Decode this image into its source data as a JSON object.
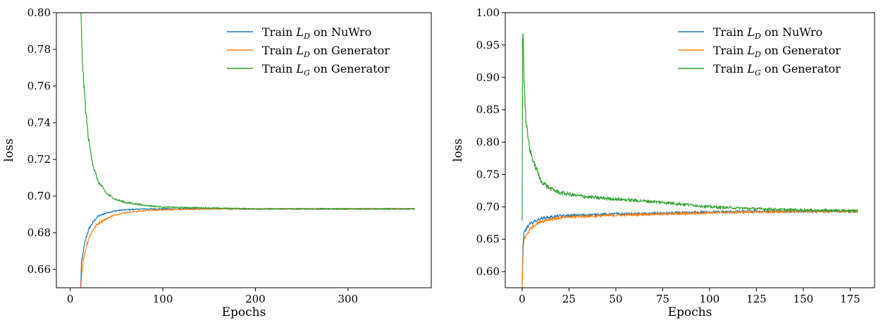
{
  "colors": {
    "nuwro_d": "#1f77b4",
    "gen_d": "#ff7f0e",
    "gen_g": "#2ca02c"
  },
  "chart_data": [
    {
      "type": "line",
      "xlabel": "Epochs",
      "ylabel": "loss",
      "xlim": [
        -15,
        390
      ],
      "ylim": [
        0.65,
        0.8
      ],
      "xticks": [
        0,
        100,
        200,
        300
      ],
      "yticks": [
        0.66,
        0.68,
        0.7,
        0.72,
        0.74,
        0.76,
        0.78,
        0.8
      ],
      "ytick_labels": [
        "0.66",
        "0.68",
        "0.70",
        "0.72",
        "0.74",
        "0.76",
        "0.78",
        "0.80"
      ],
      "legend_position": "top-right",
      "grid": false,
      "series": [
        {
          "name": "Train L_D on NuWro",
          "legend_main": "Train ",
          "legend_var": "L",
          "legend_sub": "D",
          "legend_rest": " on NuWro",
          "color_key": "nuwro_d",
          "x": [
            11,
            12,
            14,
            17,
            20,
            25,
            30,
            40,
            50,
            60,
            80,
            100,
            150,
            200,
            250,
            300,
            350,
            372
          ],
          "y": [
            0.648,
            0.662,
            0.67,
            0.677,
            0.682,
            0.686,
            0.689,
            0.691,
            0.692,
            0.6925,
            0.693,
            0.693,
            0.693,
            0.693,
            0.693,
            0.693,
            0.693,
            0.693
          ]
        },
        {
          "name": "Train L_D on Generator",
          "legend_main": "Train ",
          "legend_var": "L",
          "legend_sub": "D",
          "legend_rest": " on Generator",
          "color_key": "gen_d",
          "x": [
            11,
            12,
            14,
            17,
            20,
            25,
            30,
            40,
            50,
            60,
            80,
            100,
            150,
            200,
            250,
            300,
            350,
            372
          ],
          "y": [
            0.645,
            0.656,
            0.665,
            0.672,
            0.677,
            0.682,
            0.685,
            0.688,
            0.69,
            0.691,
            0.692,
            0.6925,
            0.693,
            0.693,
            0.693,
            0.693,
            0.693,
            0.693
          ]
        },
        {
          "name": "Train L_G on Generator",
          "legend_main": "Train ",
          "legend_var": "L",
          "legend_sub": "G",
          "legend_rest": " on Generator",
          "color_key": "gen_g",
          "x": [
            11,
            12,
            14,
            17,
            20,
            25,
            30,
            40,
            50,
            60,
            80,
            100,
            150,
            200,
            250,
            300,
            350,
            372
          ],
          "y": [
            0.805,
            0.79,
            0.765,
            0.745,
            0.73,
            0.716,
            0.708,
            0.701,
            0.698,
            0.6965,
            0.695,
            0.694,
            0.6935,
            0.693,
            0.693,
            0.693,
            0.693,
            0.693
          ]
        }
      ]
    },
    {
      "type": "line",
      "xlabel": "Epochs",
      "ylabel": "loss",
      "xlim": [
        -9,
        188
      ],
      "ylim": [
        0.575,
        1.0
      ],
      "xticks": [
        0,
        25,
        50,
        75,
        100,
        125,
        150,
        175
      ],
      "yticks": [
        0.6,
        0.65,
        0.7,
        0.75,
        0.8,
        0.85,
        0.9,
        0.95,
        1.0
      ],
      "ytick_labels": [
        "0.60",
        "0.65",
        "0.70",
        "0.75",
        "0.80",
        "0.85",
        "0.90",
        "0.95",
        "1.00"
      ],
      "legend_position": "top-right",
      "grid": false,
      "series": [
        {
          "name": "Train L_D on NuWro",
          "legend_main": "Train ",
          "legend_var": "L",
          "legend_sub": "D",
          "legend_rest": " on NuWro",
          "color_key": "nuwro_d",
          "x": [
            0,
            0.5,
            1,
            2,
            3,
            5,
            7,
            10,
            15,
            20,
            30,
            40,
            50,
            60,
            75,
            90,
            100,
            125,
            150,
            175,
            179
          ],
          "y": [
            0.58,
            0.64,
            0.66,
            0.665,
            0.67,
            0.675,
            0.678,
            0.682,
            0.684,
            0.686,
            0.687,
            0.688,
            0.689,
            0.689,
            0.69,
            0.691,
            0.692,
            0.693,
            0.693,
            0.693,
            0.693
          ]
        },
        {
          "name": "Train L_D on Generator",
          "legend_main": "Train ",
          "legend_var": "L",
          "legend_sub": "D",
          "legend_rest": " on Generator",
          "color_key": "gen_d",
          "x": [
            0,
            0.5,
            1,
            2,
            3,
            5,
            7,
            10,
            15,
            20,
            30,
            40,
            50,
            60,
            75,
            90,
            100,
            125,
            150,
            175,
            179
          ],
          "y": [
            0.575,
            0.63,
            0.65,
            0.655,
            0.66,
            0.668,
            0.673,
            0.677,
            0.681,
            0.683,
            0.685,
            0.686,
            0.687,
            0.688,
            0.689,
            0.69,
            0.691,
            0.692,
            0.693,
            0.693,
            0.693
          ]
        },
        {
          "name": "Train L_G on Generator",
          "legend_main": "Train ",
          "legend_var": "L",
          "legend_sub": "G",
          "legend_rest": " on Generator",
          "color_key": "gen_g",
          "x": [
            0,
            0.3,
            0.6,
            1,
            1.5,
            2,
            3,
            4,
            6,
            8,
            10,
            15,
            20,
            30,
            40,
            50,
            60,
            75,
            90,
            100,
            125,
            150,
            175,
            179
          ],
          "y": [
            0.68,
            1.0,
            0.96,
            0.9,
            0.86,
            0.83,
            0.81,
            0.79,
            0.77,
            0.755,
            0.74,
            0.728,
            0.722,
            0.717,
            0.714,
            0.712,
            0.71,
            0.707,
            0.703,
            0.7,
            0.697,
            0.695,
            0.694,
            0.694
          ]
        }
      ]
    }
  ]
}
